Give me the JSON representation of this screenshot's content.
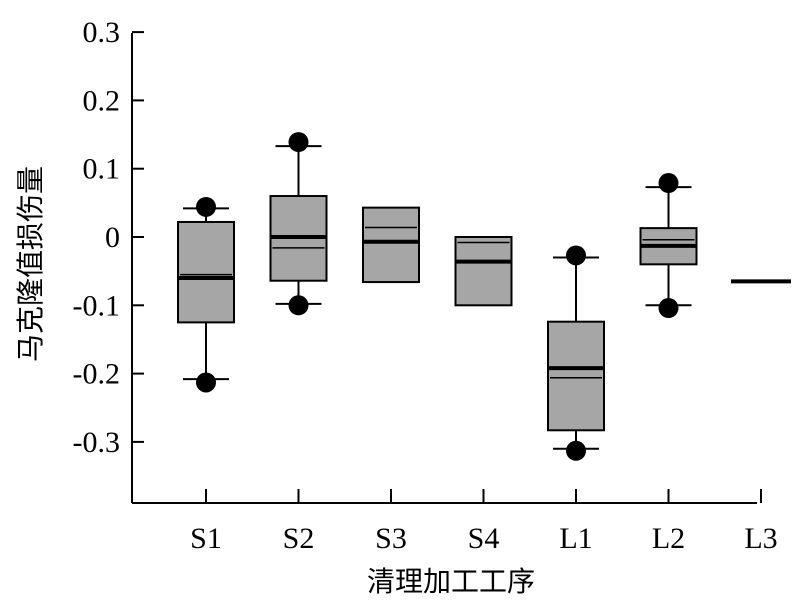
{
  "chart_data": {
    "type": "box",
    "title": "",
    "xlabel": "清理加工工序",
    "ylabel": "马克隆值损伤量",
    "ylim": [
      -0.38,
      0.3
    ],
    "y_ticks": [
      0.3,
      0.2,
      0.1,
      0,
      -0.1,
      -0.2,
      -0.3
    ],
    "y_tick_labels": [
      "0.3",
      "0.2",
      "0.1",
      "0",
      "-0.1",
      "-0.2",
      "-0.3"
    ],
    "grid": false,
    "legend": "none",
    "box_fill": "#a6a6a6",
    "categories": [
      "S1",
      "S2",
      "S3",
      "S4",
      "L1",
      "L2",
      "L3"
    ],
    "boxes": [
      {
        "category": "S1",
        "whisker_low": -0.208,
        "q1": -0.125,
        "median": -0.06,
        "mean": -0.055,
        "q3": 0.022,
        "whisker_high": 0.042,
        "outliers": [
          0.044,
          -0.213
        ]
      },
      {
        "category": "S2",
        "whisker_low": -0.098,
        "q1": -0.064,
        "median": 0.0,
        "mean": -0.016,
        "q3": 0.06,
        "whisker_high": 0.133,
        "outliers": [
          0.139,
          -0.1
        ]
      },
      {
        "category": "S3",
        "whisker_low": null,
        "q1": -0.066,
        "median": -0.007,
        "mean": 0.014,
        "q3": 0.043,
        "whisker_high": null,
        "outliers": []
      },
      {
        "category": "S4",
        "whisker_low": null,
        "q1": -0.1,
        "median": -0.036,
        "mean": -0.008,
        "q3": 0.0,
        "whisker_high": null,
        "outliers": []
      },
      {
        "category": "L1",
        "whisker_low": -0.31,
        "q1": -0.283,
        "median": -0.192,
        "mean": -0.206,
        "q3": -0.124,
        "whisker_high": -0.03,
        "outliers": [
          -0.027,
          -0.313
        ]
      },
      {
        "category": "L2",
        "whisker_low": -0.1,
        "q1": -0.04,
        "median": -0.013,
        "mean": -0.004,
        "q3": 0.013,
        "whisker_high": 0.073,
        "outliers": [
          0.079,
          -0.104
        ]
      },
      {
        "category": "L3",
        "whisker_low": null,
        "q1": -0.065,
        "median": -0.065,
        "mean": -0.065,
        "q3": -0.065,
        "whisker_high": null,
        "outliers": []
      }
    ]
  }
}
